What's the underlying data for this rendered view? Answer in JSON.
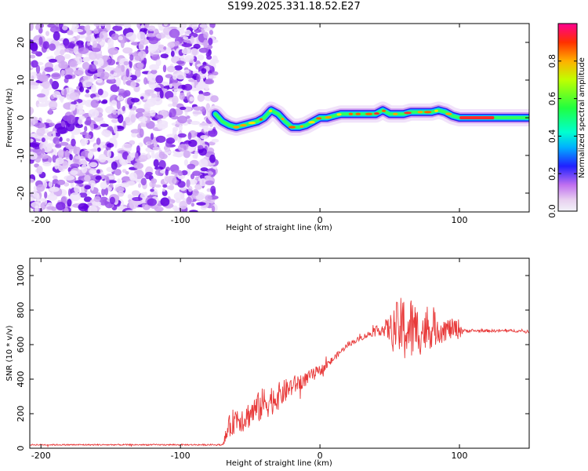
{
  "title": "S199.2025.331.18.52.E27",
  "chart_data": [
    {
      "type": "heatmap",
      "name": "spectrogram",
      "xlabel": "Height of straight line (km)",
      "ylabel": "Frequency (Hz)",
      "xlim": [
        -208,
        150
      ],
      "ylim": [
        -25,
        25
      ],
      "xticks": [
        -200,
        -100,
        0,
        100
      ],
      "yticks": [
        -20,
        -10,
        0,
        10,
        20
      ],
      "noise_region": [
        -208,
        -75
      ],
      "signal_track": {
        "x": [
          -75,
          -70,
          -65,
          -60,
          -55,
          -50,
          -45,
          -40,
          -35,
          -30,
          -25,
          -20,
          -15,
          -10,
          -5,
          0,
          5,
          10,
          15,
          20,
          25,
          30,
          35,
          40,
          45,
          50,
          55,
          60,
          65,
          70,
          75,
          80,
          85,
          90,
          95,
          100,
          110,
          120,
          130,
          140,
          150
        ],
        "freq": [
          1,
          -1,
          -2,
          -2.5,
          -2,
          -1.5,
          -1,
          0,
          2,
          1,
          -1,
          -2.5,
          -2.5,
          -2,
          -1,
          0,
          0,
          0.5,
          1,
          1,
          1,
          1,
          1,
          1,
          2,
          1,
          1,
          1,
          1.5,
          1.5,
          1.5,
          1.5,
          2,
          1.5,
          0.5,
          0,
          0,
          0,
          0,
          0,
          0
        ]
      },
      "colorbar": {
        "label": "Normalized spectral amplitude",
        "ticks": [
          "0.0",
          "0.2",
          "0.4",
          "0.6",
          "0.8"
        ],
        "range": [
          0,
          1
        ]
      }
    },
    {
      "type": "line",
      "name": "snr",
      "xlabel": "Height of straight line (km)",
      "ylabel": "SNR (10 * v/v)",
      "xlim": [
        -208,
        150
      ],
      "ylim": [
        0,
        1100
      ],
      "xticks": [
        -200,
        -100,
        0,
        100
      ],
      "yticks": [
        0,
        200,
        400,
        600,
        800,
        1000
      ],
      "line_color": "#e83a3a",
      "series": [
        {
          "name": "SNR",
          "x": [
            -208,
            -180,
            -150,
            -120,
            -90,
            -70,
            -65,
            -60,
            -55,
            -50,
            -45,
            -40,
            -35,
            -30,
            -25,
            -20,
            -15,
            -10,
            -5,
            0,
            5,
            10,
            15,
            20,
            25,
            30,
            35,
            40,
            45,
            50,
            55,
            60,
            65,
            70,
            75,
            80,
            85,
            90,
            95,
            100,
            103,
            110,
            120,
            130,
            140,
            150
          ],
          "value": [
            20,
            20,
            20,
            20,
            20,
            20,
            120,
            180,
            170,
            200,
            230,
            260,
            280,
            300,
            330,
            360,
            380,
            400,
            430,
            450,
            480,
            520,
            560,
            600,
            620,
            640,
            660,
            680,
            690,
            690,
            700,
            690,
            690,
            680,
            680,
            690,
            690,
            690,
            690,
            690,
            680,
            680,
            680,
            680,
            680,
            675
          ],
          "noise_amplitude": [
            4,
            4,
            4,
            4,
            4,
            4,
            70,
            80,
            80,
            80,
            90,
            100,
            90,
            80,
            70,
            60,
            50,
            40,
            35,
            30,
            25,
            20,
            15,
            15,
            15,
            15,
            20,
            25,
            40,
            80,
            150,
            200,
            200,
            150,
            130,
            110,
            90,
            70,
            60,
            60,
            10,
            8,
            8,
            8,
            8,
            8
          ]
        }
      ]
    }
  ]
}
